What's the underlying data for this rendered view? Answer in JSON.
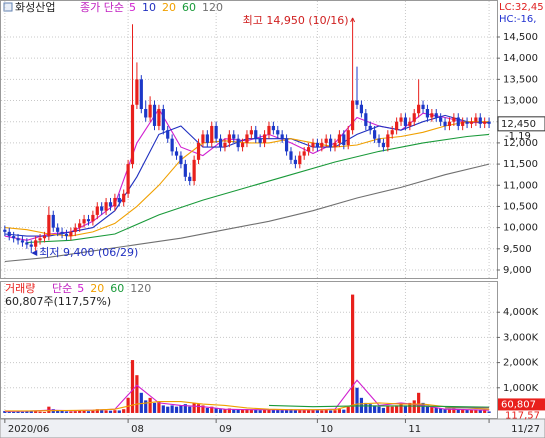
{
  "chart_data": [
    {
      "type": "candlestick",
      "title": "화성산업",
      "legend_title": "종가 단순",
      "top_labels": [
        {
          "text": "LC:32,45",
          "color": "#e02020"
        },
        {
          "text": "HC:-16,",
          "color": "#2030d0"
        }
      ],
      "up_color": "#e8201c",
      "down_color": "#1c38c8",
      "xlim": [
        -1.1,
        111.8
      ],
      "xticks": [
        {
          "value": 0,
          "label": "2020/06"
        },
        {
          "value": 28,
          "label": "08"
        },
        {
          "value": 48,
          "label": "09"
        },
        {
          "value": 71,
          "label": "10"
        },
        {
          "value": 91,
          "label": "11"
        },
        {
          "value": 110,
          "label": "11/27"
        }
      ],
      "ylim": [
        8811,
        15373
      ],
      "yticks": [
        {
          "value": 9000,
          "label": "9,000"
        },
        {
          "value": 9500,
          "label": "9,500"
        },
        {
          "value": 10000,
          "label": "10,000"
        },
        {
          "value": 10500,
          "label": "10,500"
        },
        {
          "value": 11000,
          "label": "11,000"
        },
        {
          "value": 11500,
          "label": "11,500"
        },
        {
          "value": 12000,
          "label": "12,000"
        },
        {
          "value": 12500,
          "label": "12,500"
        },
        {
          "value": 13000,
          "label": "13,000"
        },
        {
          "value": 13500,
          "label": "13,500"
        },
        {
          "value": 14000,
          "label": "14,000"
        },
        {
          "value": 14500,
          "label": "14,500"
        }
      ],
      "grid": true,
      "open": [
        9950,
        9900,
        9800,
        9750,
        9700,
        9650,
        9600,
        9550,
        9700,
        9750,
        9800,
        10300,
        10000,
        9900,
        9850,
        9800,
        9900,
        10000,
        10100,
        10200,
        10150,
        10300,
        10500,
        10400,
        10600,
        10500,
        10700,
        10600,
        10800,
        11500,
        12900,
        13500,
        12800,
        12600,
        12900,
        12400,
        12800,
        12300,
        12100,
        11800,
        11700,
        11500,
        11200,
        11100,
        11600,
        12000,
        12200,
        12000,
        12400,
        12100,
        11900,
        12000,
        12200,
        12100,
        11900,
        12000,
        12200,
        12300,
        12100,
        12000,
        12200,
        12400,
        12300,
        12200,
        12100,
        11800,
        11600,
        11500,
        11700,
        11800,
        11900,
        12000,
        11900,
        12000,
        12100,
        11900,
        12000,
        12200,
        11950,
        12300,
        13000,
        12900,
        12700,
        12400,
        12300,
        12100,
        12000,
        11900,
        12200,
        12300,
        12500,
        12600,
        12400,
        12500,
        12700,
        12900,
        12800,
        12600,
        12700,
        12600,
        12500,
        12400,
        12500,
        12600,
        12400,
        12500,
        12450,
        12500,
        12600,
        12450,
        12500
      ],
      "high": [
        10050,
        10000,
        9900,
        9850,
        9800,
        9750,
        9700,
        9800,
        9850,
        9900,
        10500,
        10400,
        10100,
        10000,
        9950,
        10000,
        10100,
        10200,
        10300,
        10300,
        10400,
        10600,
        10600,
        10700,
        10700,
        10800,
        10800,
        10900,
        11600,
        14800,
        13900,
        13600,
        13000,
        13100,
        13000,
        12900,
        12900,
        12400,
        12200,
        11900,
        11800,
        11600,
        11300,
        11700,
        12100,
        12300,
        12300,
        12500,
        12500,
        12200,
        12100,
        12300,
        12300,
        12200,
        12100,
        12300,
        12400,
        12400,
        12200,
        12300,
        12500,
        12500,
        12400,
        12300,
        12200,
        11900,
        11700,
        11800,
        11900,
        12000,
        12100,
        12100,
        12100,
        12200,
        12200,
        12100,
        12300,
        12300,
        12400,
        14950,
        13800,
        13000,
        12800,
        12500,
        12400,
        12200,
        12100,
        12300,
        12400,
        12600,
        12700,
        12700,
        12600,
        12800,
        13500,
        13000,
        12900,
        12800,
        12800,
        12700,
        12600,
        12600,
        12700,
        12700,
        12600,
        12600,
        12600,
        12700,
        12700,
        12600,
        12600
      ],
      "low": [
        9800,
        9700,
        9650,
        9600,
        9550,
        9500,
        9400,
        9450,
        9600,
        9650,
        9700,
        9900,
        9800,
        9750,
        9700,
        9700,
        9800,
        9900,
        10000,
        10050,
        10050,
        10200,
        10300,
        10300,
        10400,
        10400,
        10500,
        10500,
        10700,
        11400,
        12800,
        12700,
        12500,
        12500,
        12300,
        12300,
        12200,
        12000,
        11700,
        11600,
        11400,
        11100,
        11000,
        11000,
        11500,
        11900,
        11900,
        11900,
        12000,
        11800,
        11800,
        11900,
        12000,
        11800,
        11800,
        11900,
        12100,
        12000,
        11900,
        11900,
        12100,
        12200,
        12100,
        12000,
        11700,
        11500,
        11400,
        11400,
        11600,
        11700,
        11800,
        11800,
        11800,
        11900,
        11800,
        11800,
        11900,
        11850,
        11850,
        12200,
        12800,
        12600,
        12300,
        12200,
        12000,
        11900,
        11800,
        11800,
        12100,
        12200,
        12400,
        12300,
        12300,
        12400,
        12600,
        12700,
        12500,
        12500,
        12500,
        12400,
        12300,
        12300,
        12400,
        12300,
        12300,
        12350,
        12350,
        12400,
        12350,
        12350,
        12350
      ],
      "close": [
        9900,
        9800,
        9750,
        9700,
        9650,
        9600,
        9550,
        9700,
        9750,
        9800,
        10300,
        10000,
        9900,
        9850,
        9800,
        9900,
        10000,
        10100,
        10200,
        10150,
        10300,
        10500,
        10400,
        10600,
        10500,
        10700,
        10600,
        10800,
        11500,
        12900,
        13500,
        12800,
        12600,
        12900,
        12400,
        12800,
        12300,
        12100,
        11800,
        11700,
        11500,
        11200,
        11100,
        11600,
        12000,
        12200,
        12000,
        12400,
        12100,
        11900,
        12000,
        12200,
        12100,
        11900,
        12000,
        12200,
        12300,
        12100,
        12000,
        12200,
        12400,
        12300,
        12200,
        12100,
        11800,
        11600,
        11500,
        11700,
        11800,
        11900,
        12000,
        11900,
        12000,
        12100,
        11900,
        12000,
        12200,
        11950,
        12300,
        13000,
        12900,
        12700,
        12400,
        12300,
        12100,
        12000,
        11900,
        12200,
        12300,
        12500,
        12600,
        12400,
        12500,
        12700,
        12900,
        12800,
        12600,
        12700,
        12600,
        12500,
        12400,
        12500,
        12600,
        12400,
        12500,
        12450,
        12500,
        12600,
        12450,
        12500,
        12450
      ],
      "series": [
        {
          "name": "5",
          "color": "#d020d0",
          "x": [
            0,
            5,
            10,
            15,
            20,
            25,
            30,
            35,
            40,
            45,
            50,
            55,
            60,
            65,
            70,
            75,
            80,
            85,
            90,
            95,
            100,
            105,
            110
          ],
          "values": [
            9800,
            9700,
            9850,
            9900,
            10150,
            10550,
            12000,
            12800,
            11900,
            11700,
            12100,
            12050,
            12200,
            12000,
            11750,
            12000,
            12600,
            12400,
            12300,
            12700,
            12600,
            12480,
            12480
          ]
        },
        {
          "name": "10",
          "color": "#2030c0",
          "x": [
            0,
            5,
            10,
            15,
            20,
            25,
            30,
            35,
            40,
            45,
            50,
            55,
            60,
            65,
            70,
            75,
            80,
            85,
            90,
            95,
            100,
            105,
            110
          ],
          "values": [
            9850,
            9800,
            9800,
            9900,
            10000,
            10400,
            11200,
            12200,
            12400,
            11900,
            11900,
            12100,
            12100,
            12100,
            11900,
            11900,
            12200,
            12400,
            12300,
            12500,
            12650,
            12500,
            12480
          ]
        },
        {
          "name": "20",
          "color": "#f0a000",
          "x": [
            0,
            5,
            10,
            15,
            20,
            25,
            30,
            35,
            40,
            45,
            50,
            55,
            60,
            65,
            70,
            75,
            80,
            85,
            90,
            95,
            100,
            105,
            110
          ],
          "values": [
            10000,
            9950,
            9850,
            9800,
            9900,
            10100,
            10500,
            11000,
            11600,
            12000,
            12050,
            12000,
            12000,
            12100,
            12000,
            11900,
            11950,
            12100,
            12150,
            12250,
            12400,
            12500,
            12500
          ]
        },
        {
          "name": "60",
          "color": "#1a9a3a",
          "x": [
            5,
            15,
            25,
            35,
            45,
            55,
            65,
            75,
            85,
            95,
            105,
            110
          ],
          "values": [
            9650,
            9700,
            9850,
            10300,
            10650,
            10950,
            11250,
            11550,
            11800,
            12000,
            12150,
            12200
          ]
        },
        {
          "name": "120",
          "color": "#707070",
          "x": [
            0,
            10,
            20,
            30,
            40,
            50,
            60,
            70,
            80,
            90,
            100,
            110
          ],
          "values": [
            9200,
            9300,
            9450,
            9600,
            9750,
            9950,
            10150,
            10400,
            10700,
            10950,
            11250,
            11500
          ]
        }
      ],
      "annotations": [
        {
          "text": "최고 14,950 (10/16)",
          "index": 79,
          "value": 14950,
          "color": "#d02020"
        },
        {
          "text": "최저 9,400 (06/29)",
          "index": 6,
          "value": 9400,
          "color": "#2030c0"
        }
      ],
      "last_label": {
        "value": 12450,
        "label": "12,450"
      },
      "change_label": "-1,19"
    },
    {
      "type": "bar",
      "title": "거래량",
      "legend_title": "단순",
      "subtitle": "60,807주(117,57%)",
      "xlim": [
        -1.1,
        111.8
      ],
      "ylim": [
        -200,
        5200
      ],
      "yticks": [
        {
          "value": 1000,
          "label": "1,000K"
        },
        {
          "value": 2000,
          "label": "2,000K"
        },
        {
          "value": 3000,
          "label": "3,000K"
        },
        {
          "value": 4000,
          "label": "4,000K"
        }
      ],
      "grid": true,
      "values": [
        80,
        60,
        50,
        60,
        50,
        70,
        90,
        60,
        50,
        40,
        250,
        150,
        100,
        80,
        60,
        60,
        70,
        80,
        90,
        70,
        100,
        150,
        120,
        100,
        90,
        110,
        100,
        150,
        600,
        2100,
        1500,
        800,
        500,
        600,
        400,
        450,
        300,
        250,
        300,
        250,
        300,
        350,
        250,
        400,
        350,
        300,
        200,
        250,
        200,
        150,
        150,
        180,
        150,
        120,
        130,
        150,
        140,
        120,
        110,
        130,
        150,
        130,
        120,
        110,
        130,
        150,
        120,
        100,
        110,
        120,
        130,
        110,
        100,
        120,
        100,
        110,
        150,
        130,
        250,
        4700,
        1000,
        600,
        400,
        350,
        300,
        250,
        200,
        300,
        250,
        300,
        350,
        300,
        400,
        500,
        800,
        400,
        300,
        250,
        200,
        180,
        150,
        160,
        170,
        140,
        150,
        130,
        120,
        140,
        110,
        100,
        61
      ],
      "series": [
        {
          "name": "5",
          "color": "#d020d0",
          "x": [
            0,
            5,
            10,
            15,
            20,
            25,
            30,
            35,
            40,
            45,
            50,
            55,
            60,
            65,
            70,
            75,
            80,
            85,
            90,
            95,
            100,
            105,
            110
          ],
          "values": [
            60,
            70,
            110,
            90,
            110,
            150,
            1100,
            400,
            300,
            250,
            150,
            130,
            130,
            120,
            120,
            150,
            1300,
            300,
            400,
            300,
            150,
            130,
            110
          ]
        },
        {
          "name": "20",
          "color": "#f0a000",
          "x": [
            0,
            5,
            10,
            15,
            20,
            25,
            30,
            35,
            40,
            45,
            50,
            55,
            60,
            65,
            70,
            75,
            80,
            85,
            90,
            95,
            100,
            105,
            110
          ],
          "values": [
            80,
            80,
            90,
            100,
            110,
            150,
            350,
            450,
            450,
            350,
            300,
            200,
            150,
            130,
            130,
            130,
            350,
            400,
            350,
            350,
            250,
            200,
            150
          ]
        },
        {
          "name": "60",
          "color": "#1a9a3a",
          "x": [
            60,
            70,
            80,
            90,
            100,
            110
          ],
          "values": [
            300,
            250,
            280,
            280,
            260,
            230
          ]
        },
        {
          "name": "120",
          "color": "#707070",
          "x": [
            100,
            110
          ],
          "values": [
            200,
            210
          ]
        }
      ],
      "last_label": {
        "value": 60.807,
        "label": "60,807"
      },
      "ratio_label": "117,57"
    }
  ]
}
